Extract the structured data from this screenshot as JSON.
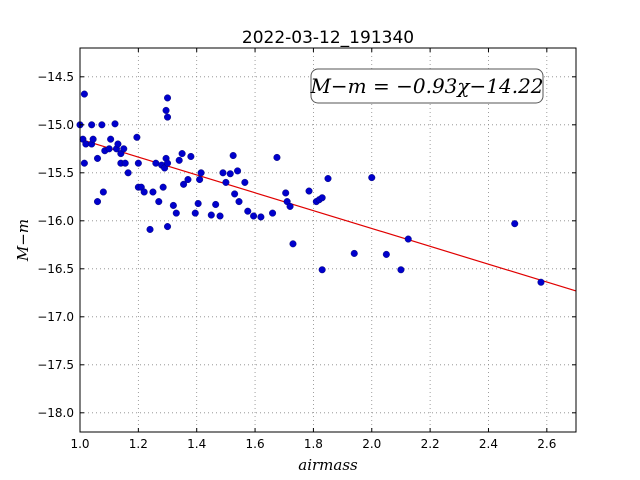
{
  "chart_data": {
    "type": "scatter",
    "title": "2022-03-12_191340",
    "xlabel": "airmass",
    "ylabel": "M−m",
    "xlim": [
      1.0,
      2.7
    ],
    "ylim": [
      -18.2,
      -14.2
    ],
    "x_ticks": [
      "1.0",
      "1.2",
      "1.4",
      "1.6",
      "1.8",
      "2.0",
      "2.2",
      "2.4",
      "2.6"
    ],
    "y_ticks": [
      "−14.5",
      "−15.0",
      "−15.5",
      "−16.0",
      "−16.5",
      "−17.0",
      "−17.5",
      "−18.0"
    ],
    "grid": true,
    "annotation": "M−m = −0.93χ−14.22",
    "fit": {
      "slope": -0.93,
      "intercept": -14.22,
      "color": "#e00000"
    },
    "point_color": "#0000cc",
    "points": [
      [
        1.0,
        -15.0
      ],
      [
        1.01,
        -15.15
      ],
      [
        1.015,
        -14.68
      ],
      [
        1.02,
        -15.2
      ],
      [
        1.015,
        -15.4
      ],
      [
        1.04,
        -15.0
      ],
      [
        1.04,
        -15.2
      ],
      [
        1.045,
        -15.15
      ],
      [
        1.06,
        -15.35
      ],
      [
        1.06,
        -15.8
      ],
      [
        1.075,
        -15.0
      ],
      [
        1.08,
        -15.7
      ],
      [
        1.085,
        -15.27
      ],
      [
        1.1,
        -15.25
      ],
      [
        1.105,
        -15.15
      ],
      [
        1.12,
        -14.99
      ],
      [
        1.125,
        -15.25
      ],
      [
        1.13,
        -15.2
      ],
      [
        1.14,
        -15.3
      ],
      [
        1.14,
        -15.4
      ],
      [
        1.15,
        -15.25
      ],
      [
        1.155,
        -15.4
      ],
      [
        1.165,
        -15.5
      ],
      [
        1.195,
        -15.13
      ],
      [
        1.2,
        -15.4
      ],
      [
        1.2,
        -15.65
      ],
      [
        1.21,
        -15.65
      ],
      [
        1.22,
        -15.7
      ],
      [
        1.24,
        -16.09
      ],
      [
        1.25,
        -15.7
      ],
      [
        1.26,
        -15.4
      ],
      [
        1.27,
        -15.8
      ],
      [
        1.28,
        -15.42
      ],
      [
        1.285,
        -15.65
      ],
      [
        1.29,
        -15.45
      ],
      [
        1.295,
        -15.35
      ],
      [
        1.3,
        -16.06
      ],
      [
        1.295,
        -14.85
      ],
      [
        1.3,
        -14.92
      ],
      [
        1.3,
        -14.72
      ],
      [
        1.3,
        -15.4
      ],
      [
        1.32,
        -15.84
      ],
      [
        1.33,
        -15.92
      ],
      [
        1.34,
        -15.37
      ],
      [
        1.35,
        -15.3
      ],
      [
        1.355,
        -15.62
      ],
      [
        1.37,
        -15.57
      ],
      [
        1.38,
        -15.33
      ],
      [
        1.395,
        -15.92
      ],
      [
        1.405,
        -15.82
      ],
      [
        1.41,
        -15.57
      ],
      [
        1.415,
        -15.5
      ],
      [
        1.45,
        -15.94
      ],
      [
        1.465,
        -15.83
      ],
      [
        1.48,
        -15.95
      ],
      [
        1.49,
        -15.5
      ],
      [
        1.5,
        -15.6
      ],
      [
        1.515,
        -15.51
      ],
      [
        1.525,
        -15.32
      ],
      [
        1.53,
        -15.72
      ],
      [
        1.54,
        -15.48
      ],
      [
        1.545,
        -15.8
      ],
      [
        1.565,
        -15.6
      ],
      [
        1.575,
        -15.9
      ],
      [
        1.595,
        -15.95
      ],
      [
        1.62,
        -15.96
      ],
      [
        1.66,
        -15.92
      ],
      [
        1.675,
        -15.34
      ],
      [
        1.705,
        -15.71
      ],
      [
        1.71,
        -15.8
      ],
      [
        1.72,
        -15.85
      ],
      [
        1.73,
        -16.24
      ],
      [
        1.785,
        -15.69
      ],
      [
        1.81,
        -15.8
      ],
      [
        1.82,
        -15.78
      ],
      [
        1.83,
        -15.76
      ],
      [
        1.83,
        -16.51
      ],
      [
        1.85,
        -15.56
      ],
      [
        1.94,
        -16.34
      ],
      [
        2.0,
        -15.55
      ],
      [
        2.05,
        -16.35
      ],
      [
        2.1,
        -16.51
      ],
      [
        2.125,
        -16.19
      ],
      [
        2.49,
        -16.03
      ],
      [
        2.58,
        -16.64
      ]
    ]
  }
}
